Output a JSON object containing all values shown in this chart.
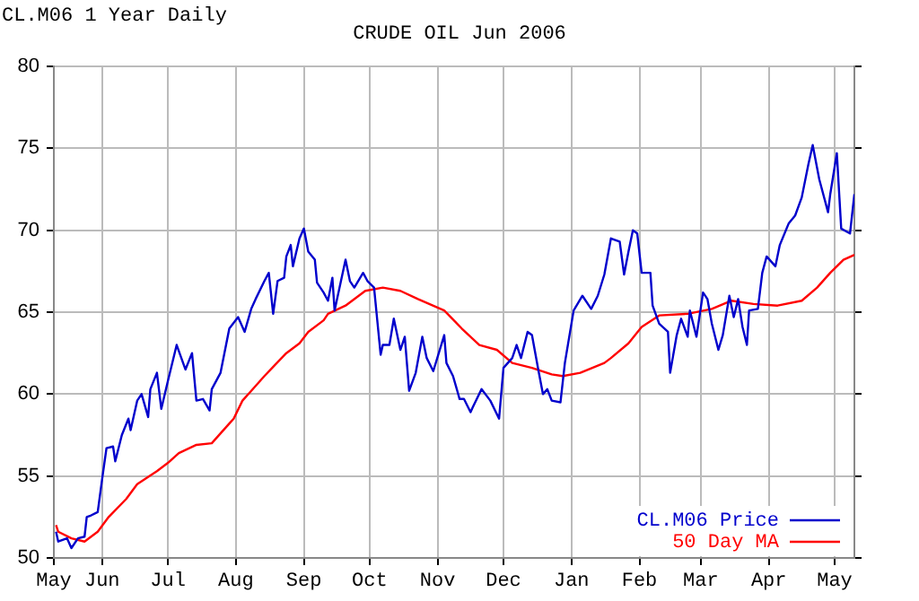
{
  "chart_data": {
    "type": "line",
    "title": "CRUDE OIL Jun 2006",
    "subtitle": "CL.M06 1 Year Daily",
    "xlim": [
      "2005-05-10",
      "2006-05-10"
    ],
    "xticks": [
      {
        "value": "2005-05-10",
        "label": "May"
      },
      {
        "value": "2005-06-01",
        "label": "Jun"
      },
      {
        "value": "2005-07-01",
        "label": "Jul"
      },
      {
        "value": "2005-08-01",
        "label": "Aug"
      },
      {
        "value": "2005-09-01",
        "label": "Sep"
      },
      {
        "value": "2005-10-01",
        "label": "Oct"
      },
      {
        "value": "2005-11-01",
        "label": "Nov"
      },
      {
        "value": "2005-12-01",
        "label": "Dec"
      },
      {
        "value": "2006-01-01",
        "label": "Jan"
      },
      {
        "value": "2006-02-01",
        "label": "Feb"
      },
      {
        "value": "2006-03-01",
        "label": "Mar"
      },
      {
        "value": "2006-04-01",
        "label": "Apr"
      },
      {
        "value": "2006-05-01",
        "label": "May"
      }
    ],
    "ylim": [
      50,
      80
    ],
    "yticks": [
      50,
      55,
      60,
      65,
      70,
      75,
      80
    ],
    "grid": true,
    "legend": "bottom right",
    "marker": "none",
    "line_style": "solid",
    "series": [
      {
        "name": "CL.M06 Price",
        "color": "#0000cc",
        "x": [
          "2005-05-11",
          "2005-05-12",
          "2005-05-16",
          "2005-05-18",
          "2005-05-21",
          "2005-05-24",
          "2005-05-25",
          "2005-05-27",
          "2005-05-30",
          "2005-06-01",
          "2005-06-03",
          "2005-06-06",
          "2005-06-07",
          "2005-06-10",
          "2005-06-13",
          "2005-06-14",
          "2005-06-17",
          "2005-06-19",
          "2005-06-22",
          "2005-06-23",
          "2005-06-26",
          "2005-06-28",
          "2005-07-01",
          "2005-07-05",
          "2005-07-09",
          "2005-07-12",
          "2005-07-14",
          "2005-07-17",
          "2005-07-20",
          "2005-07-21",
          "2005-07-25",
          "2005-07-29",
          "2005-08-02",
          "2005-08-05",
          "2005-08-08",
          "2005-08-10",
          "2005-08-14",
          "2005-08-16",
          "2005-08-18",
          "2005-08-20",
          "2005-08-23",
          "2005-08-24",
          "2005-08-26",
          "2005-08-27",
          "2005-08-30",
          "2005-09-01",
          "2005-09-03",
          "2005-09-06",
          "2005-09-07",
          "2005-09-10",
          "2005-09-12",
          "2005-09-14",
          "2005-09-15",
          "2005-09-20",
          "2005-09-22",
          "2005-09-24",
          "2005-09-28",
          "2005-09-30",
          "2005-10-03",
          "2005-10-06",
          "2005-10-07",
          "2005-10-10",
          "2005-10-12",
          "2005-10-15",
          "2005-10-17",
          "2005-10-19",
          "2005-10-22",
          "2005-10-25",
          "2005-10-27",
          "2005-10-30",
          "2005-11-04",
          "2005-11-05",
          "2005-11-08",
          "2005-11-11",
          "2005-11-13",
          "2005-11-16",
          "2005-11-17",
          "2005-11-21",
          "2005-11-25",
          "2005-11-29",
          "2005-12-01",
          "2005-12-05",
          "2005-12-07",
          "2005-12-09",
          "2005-12-12",
          "2005-12-14",
          "2005-12-17",
          "2005-12-19",
          "2005-12-21",
          "2005-12-23",
          "2005-12-27",
          "2005-12-29",
          "2006-01-02",
          "2006-01-06",
          "2006-01-10",
          "2006-01-13",
          "2006-01-16",
          "2006-01-19",
          "2006-01-23",
          "2006-01-25",
          "2006-01-27",
          "2006-01-29",
          "2006-01-31",
          "2006-02-02",
          "2006-02-06",
          "2006-02-07",
          "2006-02-10",
          "2006-02-14",
          "2006-02-15",
          "2006-02-18",
          "2006-02-20",
          "2006-02-23",
          "2006-02-24",
          "2006-02-27",
          "2006-03-02",
          "2006-03-04",
          "2006-03-06",
          "2006-03-09",
          "2006-03-11",
          "2006-03-14",
          "2006-03-16",
          "2006-03-18",
          "2006-03-20",
          "2006-03-22",
          "2006-03-23",
          "2006-03-27",
          "2006-03-29",
          "2006-03-31",
          "2006-04-04",
          "2006-04-06",
          "2006-04-10",
          "2006-04-13",
          "2006-04-16",
          "2006-04-19",
          "2006-04-21",
          "2006-04-24",
          "2006-04-28",
          "2006-04-29",
          "2006-05-02",
          "2006-05-04",
          "2006-05-08",
          "2006-05-10"
        ],
        "values": [
          51.6,
          51.0,
          51.2,
          50.6,
          51.2,
          51.3,
          52.5,
          52.6,
          52.8,
          54.8,
          56.7,
          56.8,
          55.9,
          57.5,
          58.5,
          57.8,
          59.6,
          60.0,
          58.6,
          60.3,
          61.3,
          59.1,
          60.8,
          63.0,
          61.5,
          62.5,
          59.6,
          59.7,
          59.0,
          60.3,
          61.3,
          64.0,
          64.7,
          63.8,
          65.2,
          65.8,
          66.9,
          67.4,
          64.9,
          66.9,
          67.1,
          68.4,
          69.1,
          67.8,
          69.5,
          70.1,
          68.7,
          68.2,
          66.8,
          66.2,
          65.7,
          67.1,
          65.1,
          68.2,
          66.9,
          66.5,
          67.4,
          66.9,
          66.5,
          62.4,
          63.0,
          63.0,
          64.6,
          62.7,
          63.5,
          60.2,
          61.3,
          63.5,
          62.2,
          61.4,
          63.6,
          61.9,
          61.1,
          59.7,
          59.7,
          58.9,
          59.2,
          60.3,
          59.6,
          58.5,
          61.6,
          62.2,
          63.0,
          62.2,
          63.8,
          63.6,
          61.4,
          60.0,
          60.3,
          59.6,
          59.5,
          61.9,
          65.1,
          66.0,
          65.2,
          66.0,
          67.3,
          69.5,
          69.3,
          67.3,
          68.7,
          70.0,
          69.8,
          67.4,
          67.4,
          65.4,
          64.3,
          63.8,
          61.3,
          63.6,
          64.6,
          63.5,
          65.1,
          63.5,
          66.2,
          65.8,
          64.3,
          62.7,
          63.6,
          66.0,
          64.7,
          65.8,
          64.1,
          63.0,
          65.1,
          65.2,
          67.4,
          68.4,
          67.8,
          69.1,
          70.4,
          70.9,
          72.0,
          74.0,
          75.2,
          73.1,
          71.1,
          72.2,
          74.7,
          70.1,
          69.8,
          72.2
        ]
      },
      {
        "name": "50 Day MA",
        "color": "#ff0000",
        "x": [
          "2005-05-11",
          "2005-05-12",
          "2005-05-18",
          "2005-05-24",
          "2005-05-30",
          "2005-06-04",
          "2005-06-12",
          "2005-06-17",
          "2005-06-26",
          "2005-07-01",
          "2005-07-06",
          "2005-07-14",
          "2005-07-21",
          "2005-07-25",
          "2005-07-31",
          "2005-08-04",
          "2005-08-08",
          "2005-08-14",
          "2005-08-19",
          "2005-08-24",
          "2005-08-30",
          "2005-09-03",
          "2005-09-10",
          "2005-09-12",
          "2005-09-20",
          "2005-09-29",
          "2005-10-07",
          "2005-10-15",
          "2005-10-23",
          "2005-11-04",
          "2005-11-12",
          "2005-11-20",
          "2005-11-28",
          "2005-12-05",
          "2005-12-14",
          "2005-12-23",
          "2005-12-28",
          "2006-01-05",
          "2006-01-16",
          "2006-01-19",
          "2006-01-27",
          "2006-02-02",
          "2006-02-10",
          "2006-02-23",
          "2006-03-06",
          "2006-03-15",
          "2006-03-25",
          "2006-04-05",
          "2006-04-16",
          "2006-04-23",
          "2006-04-29",
          "2006-05-05",
          "2006-05-10"
        ],
        "values": [
          52.0,
          51.6,
          51.2,
          51.0,
          51.6,
          52.5,
          53.6,
          54.5,
          55.3,
          55.8,
          56.4,
          56.9,
          57.0,
          57.6,
          58.5,
          59.6,
          60.2,
          61.1,
          61.8,
          62.5,
          63.1,
          63.8,
          64.5,
          64.9,
          65.4,
          66.3,
          66.5,
          66.3,
          65.8,
          65.1,
          64.0,
          63.0,
          62.7,
          61.9,
          61.6,
          61.2,
          61.1,
          61.3,
          61.9,
          62.2,
          63.1,
          64.1,
          64.8,
          64.9,
          65.2,
          65.7,
          65.5,
          65.4,
          65.7,
          66.5,
          67.4,
          68.2,
          68.5
        ]
      }
    ]
  }
}
